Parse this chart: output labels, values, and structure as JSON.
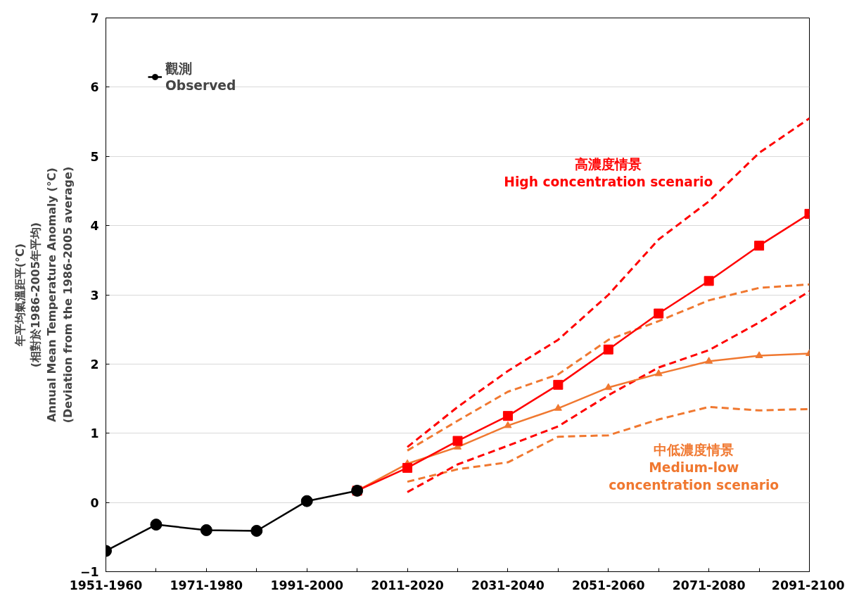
{
  "chart_data": {
    "type": "line",
    "ylabel": "年平均氣溫距平(°C)\n(相對於1986-2005年平均)\nAnnual Mean Temperature Anomaly (°C)\n(Deviation from the 1986-2005 average)",
    "categories": [
      "1951-1960",
      null,
      "1971-1980",
      null,
      "1991-2000",
      null,
      "2011-2020",
      null,
      "2031-2040",
      null,
      "2051-2060",
      null,
      "2071-2080",
      null,
      "2091-2100"
    ],
    "ylim": [
      -1,
      7
    ],
    "yticks": [
      -1,
      0,
      1,
      2,
      3,
      4,
      5,
      6,
      7
    ],
    "grid": "y",
    "legend": "top left",
    "series": [
      {
        "name": "觀測\nObserved",
        "color": "#000000",
        "marker": "circle",
        "line_style": "solid",
        "values": [
          -0.7,
          -0.32,
          -0.4,
          -0.41,
          0.02,
          0.17,
          null,
          null,
          null,
          null,
          null,
          null,
          null,
          null,
          null
        ]
      },
      {
        "name": "高濃度情景\nHigh concentration scenario",
        "color": "#ff0000",
        "marker": "square",
        "line_style": "solid",
        "values": [
          null,
          null,
          null,
          null,
          null,
          0.17,
          0.5,
          0.89,
          1.25,
          1.7,
          2.21,
          2.73,
          3.2,
          3.71,
          4.17
        ]
      },
      {
        "name": "中低濃度情景\nMedium-low\nconcentration scenario",
        "color": "#f07830",
        "marker": "triangle",
        "line_style": "solid",
        "values": [
          null,
          null,
          null,
          null,
          null,
          0.17,
          0.56,
          0.8,
          1.11,
          1.36,
          1.66,
          1.86,
          2.04,
          2.12,
          2.15
        ]
      },
      {
        "color": "#ff0000",
        "marker": "none",
        "line_style": "dashed",
        "values": [
          null,
          null,
          null,
          null,
          null,
          null,
          0.8,
          1.38,
          1.9,
          2.35,
          3.0,
          3.8,
          4.35,
          5.05,
          5.55
        ]
      },
      {
        "color": "#ff0000",
        "marker": "none",
        "line_style": "dashed",
        "values": [
          null,
          null,
          null,
          null,
          null,
          null,
          0.15,
          0.55,
          0.82,
          1.1,
          1.55,
          1.95,
          2.2,
          2.6,
          3.05
        ]
      },
      {
        "color": "#f07830",
        "marker": "none",
        "line_style": "dashed",
        "values": [
          null,
          null,
          null,
          null,
          null,
          null,
          0.75,
          1.18,
          1.6,
          1.85,
          2.35,
          2.62,
          2.92,
          3.1,
          3.15
        ]
      },
      {
        "color": "#f07830",
        "marker": "none",
        "line_style": "dashed",
        "values": [
          null,
          null,
          null,
          null,
          null,
          null,
          0.3,
          0.48,
          0.58,
          0.95,
          0.97,
          1.2,
          1.38,
          1.33,
          1.35
        ]
      }
    ]
  }
}
